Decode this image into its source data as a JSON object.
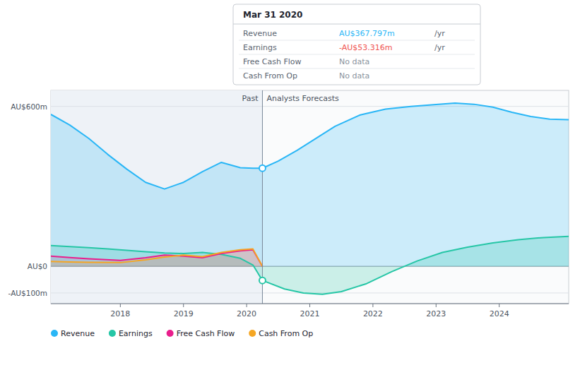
{
  "chart_data": {
    "type": "area",
    "xlim": [
      2016.9,
      2025.1
    ],
    "ylim": [
      -140,
      660
    ],
    "xticks": [
      2018,
      2019,
      2020,
      2021,
      2022,
      2023,
      2024
    ],
    "yticks": [
      {
        "value": -100,
        "label": "-AU$100m"
      },
      {
        "value": 0,
        "label": "AU$0"
      },
      {
        "value": 600,
        "label": "AU$600m"
      }
    ],
    "grid": true,
    "legend": "bottom-left",
    "divider": {
      "x": 2020.25,
      "values": [
        368,
        -53
      ]
    },
    "annotations": [
      "Past",
      "Analysts Forecasts"
    ],
    "tooltip": {
      "title": "Mar 31 2020",
      "rows": [
        {
          "label": "Revenue",
          "value": "AU$367.797m",
          "unit": "/yr",
          "color": "#29b6f6"
        },
        {
          "label": "Earnings",
          "value": "-AU$53.316m",
          "unit": "/yr",
          "color": "#ef5350"
        },
        {
          "label": "Free Cash Flow",
          "value": "No data"
        },
        {
          "label": "Cash From Op",
          "value": "No data"
        }
      ]
    },
    "series": [
      {
        "name": "Revenue",
        "color": "#29b6f6",
        "x": [
          2016.9,
          2017.2,
          2017.5,
          2017.8,
          2018.1,
          2018.4,
          2018.7,
          2019.0,
          2019.3,
          2019.6,
          2019.9,
          2020.1,
          2020.25,
          2020.25,
          2020.5,
          2020.8,
          2021.1,
          2021.4,
          2021.8,
          2022.2,
          2022.6,
          2023.0,
          2023.3,
          2023.6,
          2023.9,
          2024.2,
          2024.5,
          2024.8,
          2025.1
        ],
        "values": [
          570,
          530,
          480,
          420,
          365,
          315,
          290,
          315,
          355,
          390,
          370,
          368,
          368,
          368,
          395,
          435,
          480,
          525,
          568,
          590,
          600,
          607,
          612,
          608,
          597,
          578,
          562,
          552,
          550
        ]
      },
      {
        "name": "Earnings",
        "color": "#26c6a6",
        "x": [
          2016.9,
          2017.2,
          2017.5,
          2017.8,
          2018.1,
          2018.4,
          2018.7,
          2019.0,
          2019.3,
          2019.6,
          2019.9,
          2020.1,
          2020.25,
          2020.25,
          2020.6,
          2020.9,
          2021.2,
          2021.5,
          2021.9,
          2022.3,
          2022.7,
          2023.1,
          2023.5,
          2023.9,
          2024.3,
          2024.7,
          2025.1
        ],
        "values": [
          78,
          74,
          70,
          65,
          60,
          55,
          50,
          48,
          52,
          45,
          30,
          5,
          -53,
          -53,
          -85,
          -100,
          -105,
          -95,
          -65,
          -20,
          20,
          52,
          72,
          88,
          100,
          108,
          112
        ]
      },
      {
        "name": "Free Cash Flow",
        "color": "#e91e8c",
        "x": [
          2016.9,
          2017.2,
          2017.5,
          2018.0,
          2018.4,
          2018.7,
          2019.0,
          2019.3,
          2019.6,
          2019.9,
          2020.1,
          2020.25
        ],
        "values": [
          38,
          33,
          28,
          22,
          32,
          42,
          38,
          32,
          48,
          58,
          62,
          0
        ]
      },
      {
        "name": "Cash From Op",
        "color": "#f5a623",
        "x": [
          2016.9,
          2017.2,
          2017.5,
          2018.0,
          2018.4,
          2018.7,
          2019.0,
          2019.3,
          2019.6,
          2019.9,
          2020.1,
          2020.25
        ],
        "values": [
          18,
          16,
          15,
          14,
          24,
          35,
          42,
          36,
          52,
          62,
          65,
          0
        ]
      }
    ]
  }
}
